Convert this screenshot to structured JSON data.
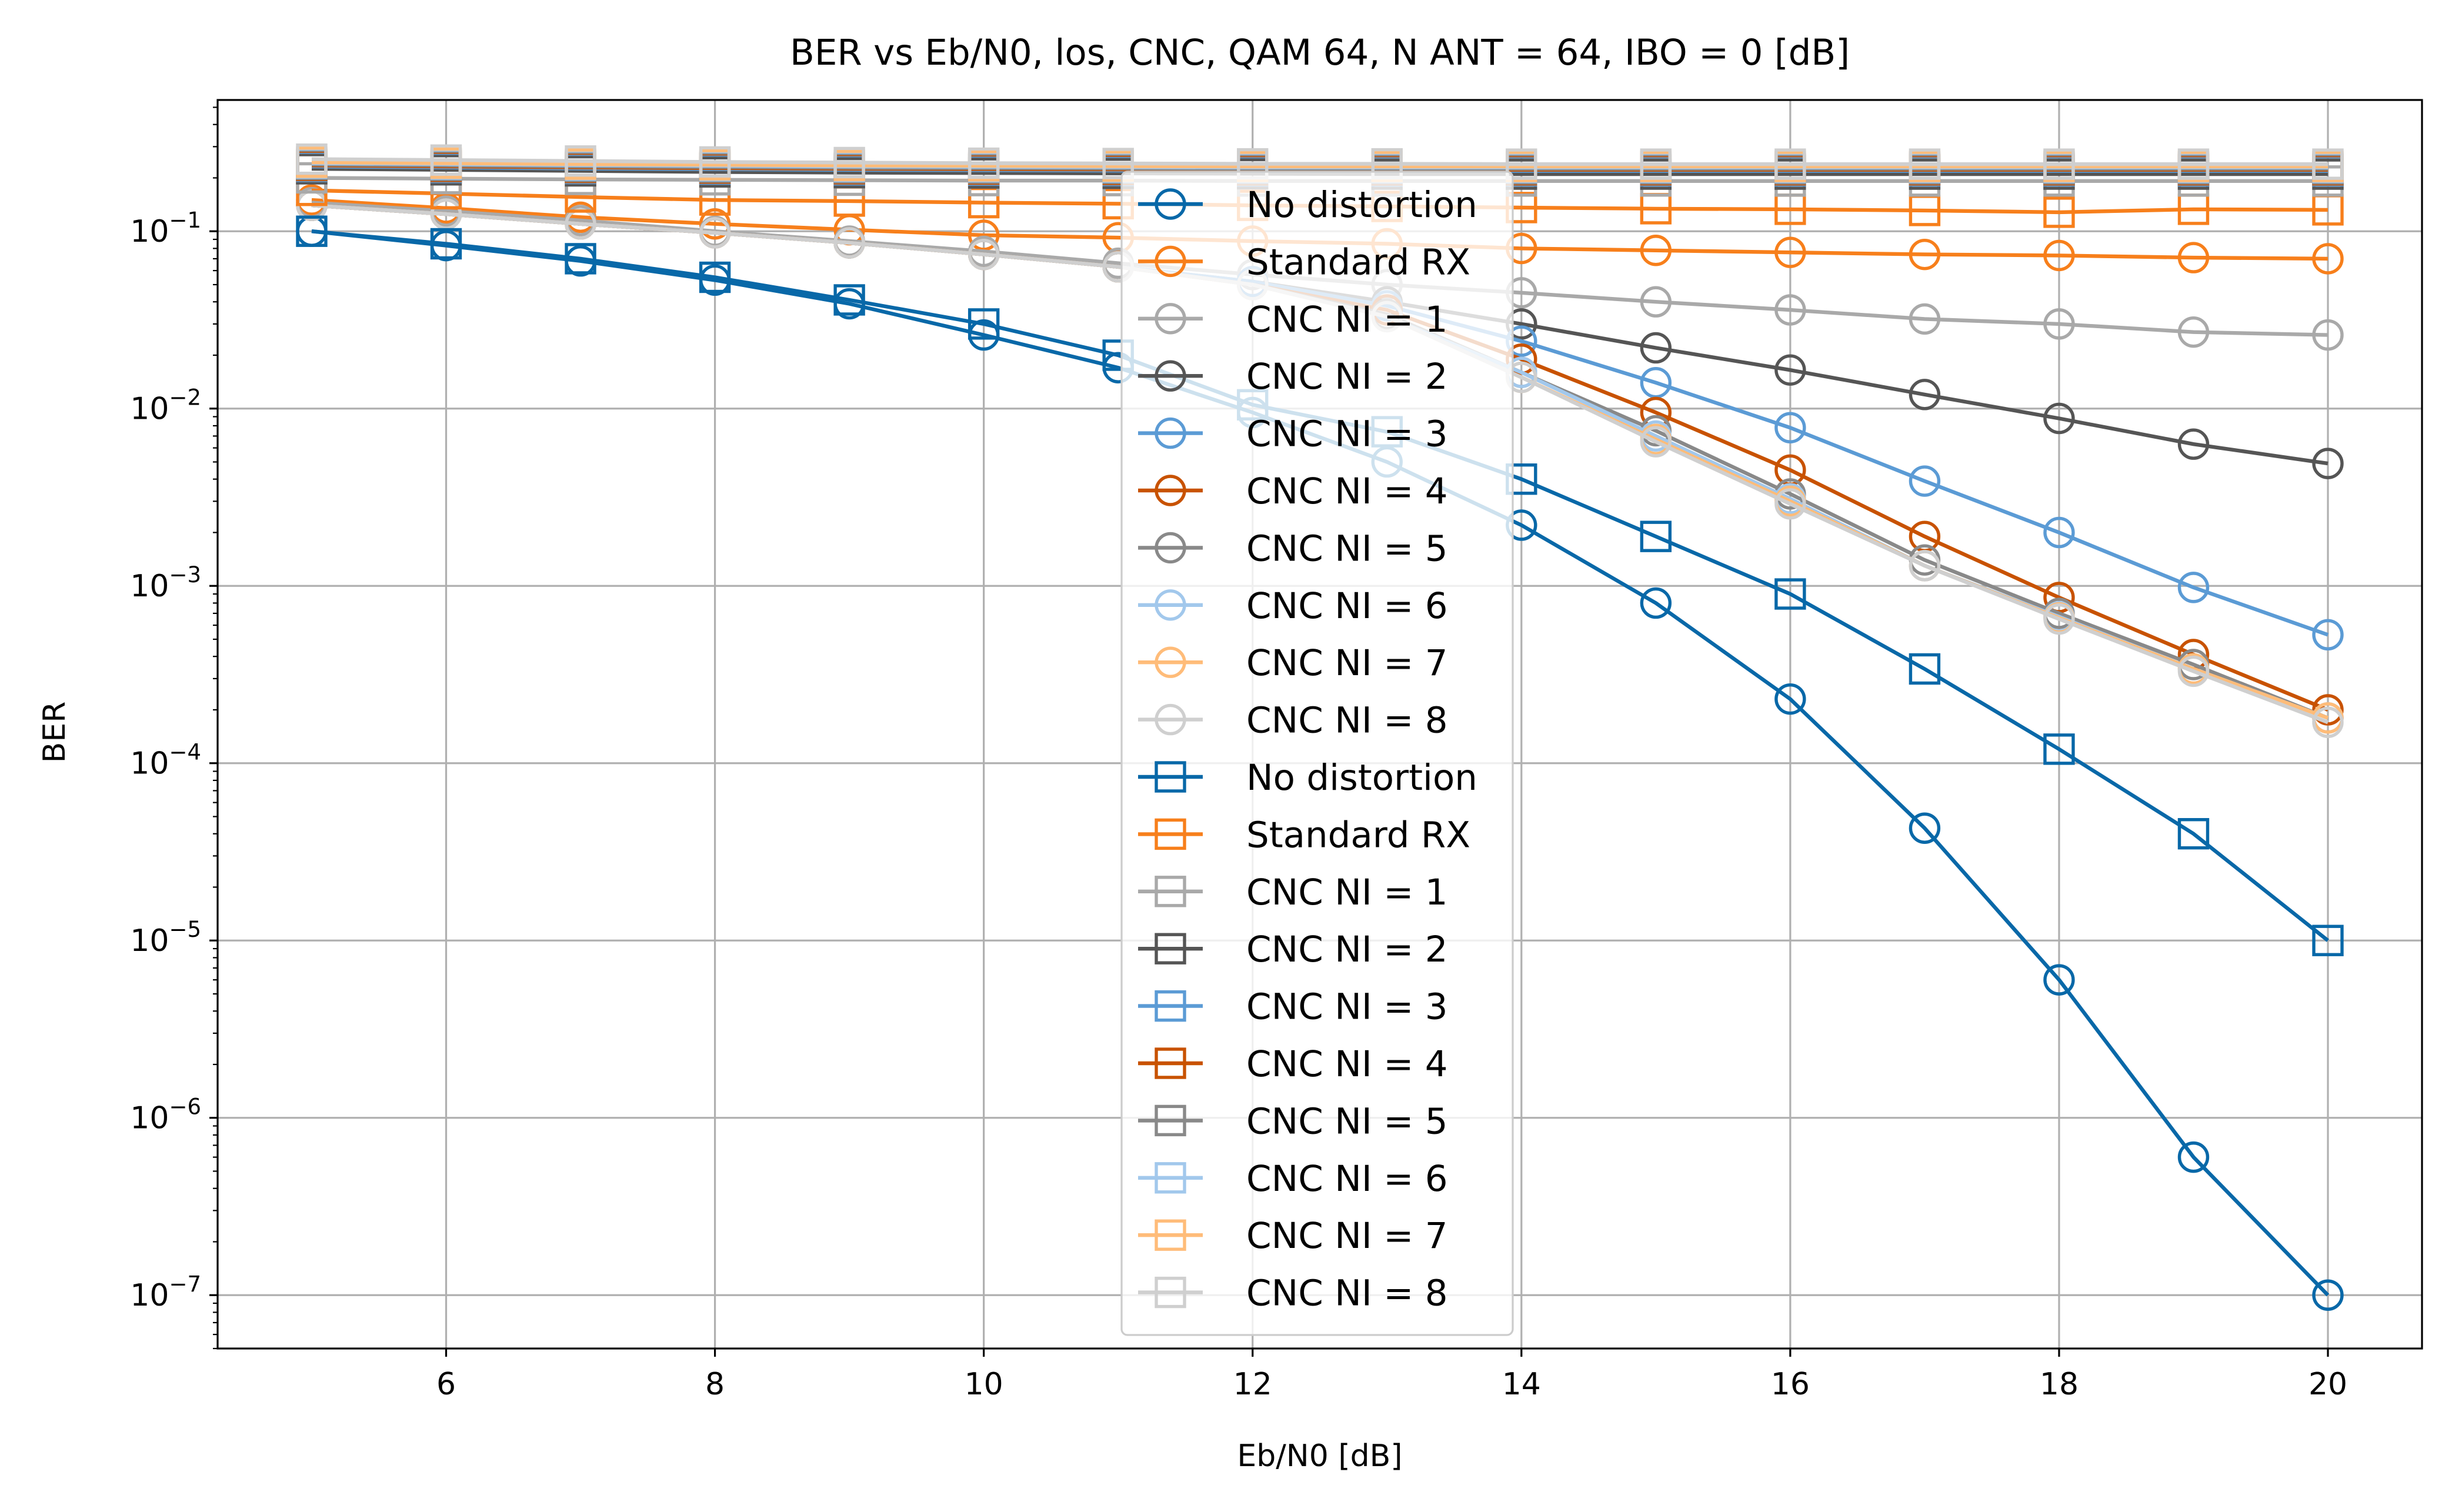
{
  "chart_data": {
    "type": "line",
    "title": "BER vs Eb/N0, los, CNC, QAM 64, N ANT = 64, IBO = 0 [dB]",
    "xlabel": "Eb/N0 [dB]",
    "ylabel": "BER",
    "xlim": [
      4.3,
      20.7
    ],
    "ylim": [
      5e-08,
      0.55
    ],
    "yscale": "log",
    "grid": true,
    "legend_position": "center",
    "x_ticks": [
      6,
      8,
      10,
      12,
      14,
      16,
      18,
      20
    ],
    "y_ticks": [
      {
        "base": "10",
        "exp": "−7",
        "value": 1e-07
      },
      {
        "base": "10",
        "exp": "−6",
        "value": 1e-06
      },
      {
        "base": "10",
        "exp": "−5",
        "value": 1e-05
      },
      {
        "base": "10",
        "exp": "−4",
        "value": 0.0001
      },
      {
        "base": "10",
        "exp": "−3",
        "value": 0.001
      },
      {
        "base": "10",
        "exp": "−2",
        "value": 0.01
      },
      {
        "base": "10",
        "exp": "−1",
        "value": 0.1
      }
    ],
    "x": [
      5,
      6,
      7,
      8,
      9,
      10,
      11,
      12,
      13,
      14,
      15,
      16,
      17,
      18,
      19,
      20
    ],
    "series": [
      {
        "name": "No distortion",
        "marker": "circle",
        "color": "#0868a8",
        "values": [
          0.1,
          0.083,
          0.068,
          0.053,
          0.039,
          0.026,
          0.017,
          0.0095,
          0.005,
          0.0022,
          0.0008,
          0.00023,
          4.3e-05,
          6e-06,
          6e-07,
          1e-07
        ]
      },
      {
        "name": "Standard RX",
        "marker": "circle",
        "color": "#f77f1b",
        "values": [
          0.15,
          0.135,
          0.12,
          0.11,
          0.102,
          0.095,
          0.092,
          0.088,
          0.085,
          0.08,
          0.078,
          0.076,
          0.074,
          0.073,
          0.071,
          0.07
        ]
      },
      {
        "name": "CNC NI = 1",
        "marker": "circle",
        "color": "#a9a9a9",
        "values": [
          0.145,
          0.13,
          0.115,
          0.1,
          0.088,
          0.077,
          0.066,
          0.057,
          0.05,
          0.045,
          0.04,
          0.036,
          0.032,
          0.03,
          0.027,
          0.026
        ]
      },
      {
        "name": "CNC NI = 2",
        "marker": "circle",
        "color": "#555555",
        "values": [
          0.14,
          0.125,
          0.11,
          0.098,
          0.086,
          0.074,
          0.063,
          0.052,
          0.04,
          0.03,
          0.022,
          0.0165,
          0.012,
          0.0088,
          0.0063,
          0.0049
        ]
      },
      {
        "name": "CNC NI = 3",
        "marker": "circle",
        "color": "#5b9bd5",
        "values": [
          0.14,
          0.125,
          0.11,
          0.098,
          0.086,
          0.074,
          0.063,
          0.052,
          0.038,
          0.024,
          0.014,
          0.0078,
          0.0039,
          0.002,
          0.00098,
          0.00053
        ]
      },
      {
        "name": "CNC NI = 4",
        "marker": "circle",
        "color": "#c85200",
        "values": [
          0.14,
          0.125,
          0.11,
          0.098,
          0.086,
          0.074,
          0.063,
          0.05,
          0.036,
          0.019,
          0.0095,
          0.0045,
          0.0019,
          0.00086,
          0.00041,
          0.0002
        ]
      },
      {
        "name": "CNC NI = 5",
        "marker": "circle",
        "color": "#898989",
        "values": [
          0.14,
          0.125,
          0.11,
          0.098,
          0.086,
          0.074,
          0.063,
          0.05,
          0.034,
          0.016,
          0.0075,
          0.0033,
          0.0014,
          0.0007,
          0.00036,
          0.00018
        ]
      },
      {
        "name": "CNC NI = 6",
        "marker": "circle",
        "color": "#a2c8ec",
        "values": [
          0.14,
          0.125,
          0.11,
          0.098,
          0.086,
          0.074,
          0.063,
          0.05,
          0.033,
          0.016,
          0.007,
          0.0031,
          0.0013,
          0.00067,
          0.00034,
          0.00018
        ]
      },
      {
        "name": "CNC NI = 7",
        "marker": "circle",
        "color": "#ffbc79",
        "values": [
          0.14,
          0.125,
          0.11,
          0.098,
          0.086,
          0.074,
          0.063,
          0.05,
          0.033,
          0.015,
          0.0067,
          0.003,
          0.0013,
          0.00066,
          0.00034,
          0.00018
        ]
      },
      {
        "name": "CNC NI = 8",
        "marker": "circle",
        "color": "#cfcfcf",
        "values": [
          0.14,
          0.125,
          0.11,
          0.098,
          0.086,
          0.074,
          0.063,
          0.05,
          0.033,
          0.015,
          0.0065,
          0.0029,
          0.0013,
          0.00065,
          0.00033,
          0.00017
        ]
      },
      {
        "name": "No distortion",
        "marker": "square",
        "color": "#0868a8",
        "values": [
          0.1,
          0.085,
          0.07,
          0.055,
          0.041,
          0.03,
          0.02,
          0.0105,
          0.0074,
          0.004,
          0.0019,
          0.0009,
          0.00034,
          0.00012,
          4e-05,
          1e-05
        ]
      },
      {
        "name": "Standard RX",
        "marker": "square",
        "color": "#f77f1b",
        "values": [
          0.17,
          0.163,
          0.156,
          0.15,
          0.148,
          0.145,
          0.143,
          0.14,
          0.138,
          0.136,
          0.134,
          0.133,
          0.131,
          0.128,
          0.133,
          0.132
        ]
      },
      {
        "name": "CNC NI = 1",
        "marker": "square",
        "color": "#a9a9a9",
        "values": [
          0.2,
          0.198,
          0.196,
          0.195,
          0.194,
          0.193,
          0.193,
          0.192,
          0.192,
          0.192,
          0.192,
          0.192,
          0.192,
          0.192,
          0.192,
          0.192
        ]
      },
      {
        "name": "CNC NI = 2",
        "marker": "square",
        "color": "#555555",
        "values": [
          0.225,
          0.222,
          0.219,
          0.216,
          0.214,
          0.213,
          0.212,
          0.211,
          0.21,
          0.21,
          0.21,
          0.21,
          0.21,
          0.21,
          0.21,
          0.21
        ]
      },
      {
        "name": "CNC NI = 3",
        "marker": "square",
        "color": "#5b9bd5",
        "values": [
          0.232,
          0.229,
          0.226,
          0.224,
          0.222,
          0.221,
          0.22,
          0.219,
          0.219,
          0.219,
          0.219,
          0.219,
          0.219,
          0.219,
          0.219,
          0.219
        ]
      },
      {
        "name": "CNC NI = 4",
        "marker": "square",
        "color": "#c85200",
        "values": [
          0.235,
          0.232,
          0.229,
          0.227,
          0.225,
          0.224,
          0.223,
          0.222,
          0.222,
          0.222,
          0.222,
          0.222,
          0.222,
          0.222,
          0.222,
          0.222
        ]
      },
      {
        "name": "CNC NI = 5",
        "marker": "square",
        "color": "#898989",
        "values": [
          0.238,
          0.235,
          0.232,
          0.23,
          0.228,
          0.227,
          0.226,
          0.225,
          0.225,
          0.225,
          0.225,
          0.225,
          0.225,
          0.225,
          0.225,
          0.225
        ]
      },
      {
        "name": "CNC NI = 6",
        "marker": "square",
        "color": "#a2c8ec",
        "values": [
          0.242,
          0.239,
          0.236,
          0.234,
          0.232,
          0.231,
          0.23,
          0.229,
          0.229,
          0.229,
          0.229,
          0.229,
          0.229,
          0.229,
          0.229,
          0.229
        ]
      },
      {
        "name": "CNC NI = 7",
        "marker": "square",
        "color": "#ffbc79",
        "values": [
          0.245,
          0.242,
          0.239,
          0.237,
          0.235,
          0.234,
          0.233,
          0.232,
          0.232,
          0.232,
          0.232,
          0.232,
          0.232,
          0.232,
          0.232,
          0.232
        ]
      },
      {
        "name": "CNC NI = 8",
        "marker": "square",
        "color": "#cfcfcf",
        "values": [
          0.255,
          0.252,
          0.249,
          0.246,
          0.244,
          0.242,
          0.241,
          0.24,
          0.24,
          0.239,
          0.239,
          0.239,
          0.239,
          0.239,
          0.239,
          0.239
        ]
      }
    ]
  }
}
